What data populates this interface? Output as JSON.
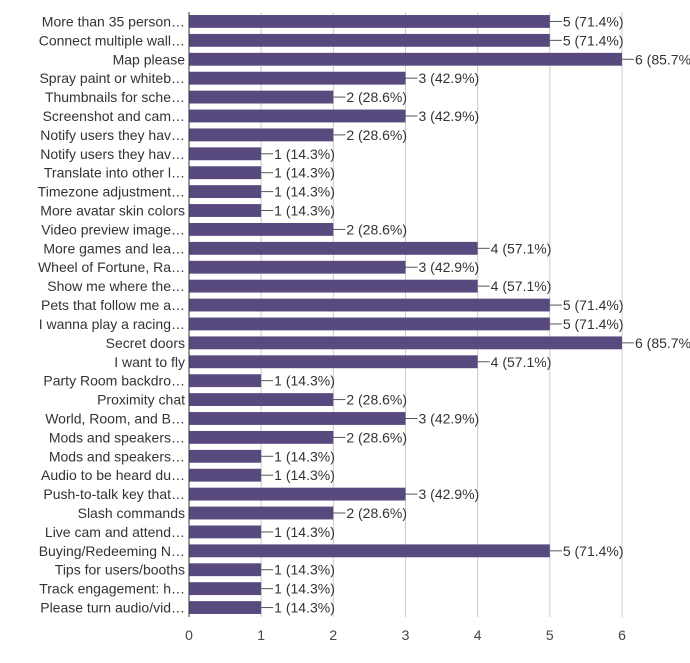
{
  "chart_data": {
    "type": "bar",
    "orientation": "horizontal",
    "title": "",
    "xlabel": "",
    "ylabel": "",
    "xlim": [
      0,
      6
    ],
    "xticks": [
      "0",
      "1",
      "2",
      "3",
      "4",
      "5",
      "6"
    ],
    "grid": true,
    "bar_color": "#584a7e",
    "categories": [
      "More than 35 person…",
      "Connect multiple wall…",
      "Map please",
      "Spray paint or whiteb…",
      "Thumbnails for sche…",
      "Screenshot and cam…",
      "Notify users they hav…",
      "Notify users they hav…",
      "Translate into other l…",
      "Timezone adjustment…",
      "More avatar skin colors",
      "Video preview image…",
      "More games and lea…",
      "Wheel of Fortune, Ra…",
      "Show me where the…",
      "Pets that follow me a…",
      "I wanna play a racing…",
      "Secret doors",
      "I want to fly",
      "Party Room backdro…",
      "Proximity chat",
      "World, Room, and B…",
      "Mods and speakers…",
      "Mods and speakers…",
      "Audio to be heard du…",
      "Push-to-talk key that…",
      "Slash commands",
      "Live cam and attend…",
      "Buying/Redeeming N…",
      "Tips for users/booths",
      "Track engagement: h…",
      "Please turn audio/vid…"
    ],
    "values": [
      5,
      5,
      6,
      3,
      2,
      3,
      2,
      1,
      1,
      1,
      1,
      2,
      4,
      3,
      4,
      5,
      5,
      6,
      4,
      1,
      2,
      3,
      2,
      1,
      1,
      3,
      2,
      1,
      5,
      1,
      1,
      1
    ],
    "value_labels": [
      "5 (71.4%)",
      "5 (71.4%)",
      "6 (85.7%",
      "3 (42.9%)",
      "2 (28.6%)",
      "3 (42.9%)",
      "2 (28.6%)",
      "1 (14.3%)",
      "1 (14.3%)",
      "1 (14.3%)",
      "1 (14.3%)",
      "2 (28.6%)",
      "4 (57.1%)",
      "3 (42.9%)",
      "4 (57.1%)",
      "5 (71.4%)",
      "5 (71.4%)",
      "6 (85.7%",
      "4 (57.1%)",
      "1 (14.3%)",
      "2 (28.6%)",
      "3 (42.9%)",
      "2 (28.6%)",
      "1 (14.3%)",
      "1 (14.3%)",
      "3 (42.9%)",
      "2 (28.6%)",
      "1 (14.3%)",
      "5 (71.4%)",
      "1 (14.3%)",
      "1 (14.3%)",
      "1 (14.3%)"
    ]
  }
}
